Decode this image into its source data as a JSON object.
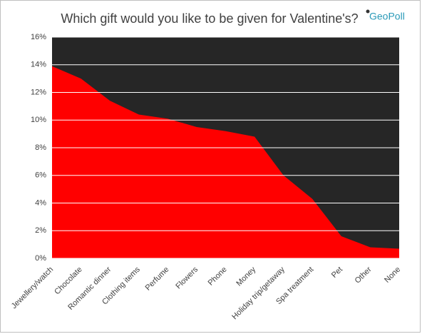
{
  "chart_data": {
    "type": "area",
    "title": "Which gift would you like to be given for Valentine's?",
    "logo": "GeoPoll",
    "categories": [
      "Jewellery/watch",
      "Chocolate",
      "Romantic dinner",
      "Clothing items",
      "Perfume",
      "Flowers",
      "Phone",
      "Money",
      "Holiday trip/getaway",
      "Spa treatment",
      "Pet",
      "Other",
      "None"
    ],
    "values": [
      13.9,
      13.0,
      11.4,
      10.4,
      10.1,
      9.5,
      9.2,
      8.8,
      6.0,
      4.3,
      1.6,
      0.8,
      0.7
    ],
    "color": "#ff0000",
    "plot_background": "#262626",
    "ylim": [
      0,
      16
    ],
    "yticks": [
      {
        "value": 0,
        "label": "0%"
      },
      {
        "value": 2,
        "label": "2%"
      },
      {
        "value": 4,
        "label": "4%"
      },
      {
        "value": 6,
        "label": "6%"
      },
      {
        "value": 8,
        "label": "8%"
      },
      {
        "value": 10,
        "label": "10%"
      },
      {
        "value": 12,
        "label": "12%"
      },
      {
        "value": 14,
        "label": "14%"
      },
      {
        "value": 16,
        "label": "16%"
      }
    ],
    "grid": true
  }
}
